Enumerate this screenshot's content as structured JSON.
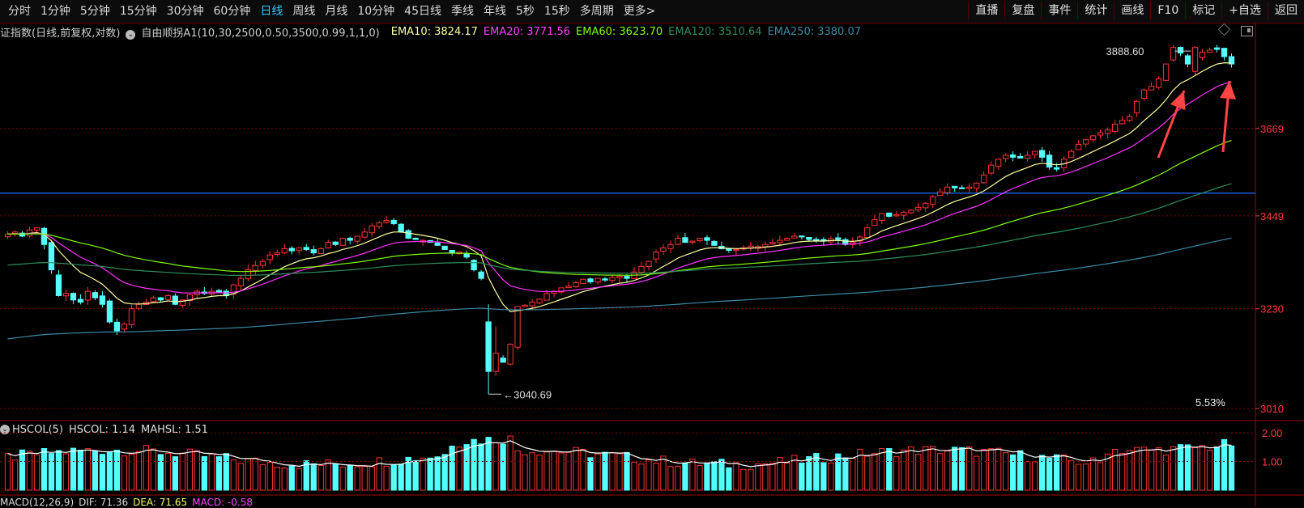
{
  "toolbar": {
    "periods": [
      "分时",
      "1分钟",
      "5分钟",
      "15分钟",
      "30分钟",
      "60分钟",
      "日线",
      "周线",
      "月线",
      "10分钟",
      "45日线",
      "季线",
      "年线",
      "5秒",
      "15秒",
      "多周期",
      "更多>"
    ],
    "active": "日线",
    "right_buttons": [
      "直播",
      "复盘",
      "事件",
      "统计",
      "画线",
      "F10",
      "标记",
      "+自选",
      "返回"
    ]
  },
  "legend": {
    "title": "证指数(日线,前复权,对数)",
    "indicator": "自由顺拐A1(10,30,2500,0.50,3500,0.99,1,1,0)",
    "ema10": "EMA10: 3824.17",
    "ema20": "EMA20: 3771.56",
    "ema60": "EMA60: 3623.70",
    "ema120": "EMA120: 3510.64",
    "ema250": "EMA250: 3380.07"
  },
  "price_axis": [
    "3669",
    "3449",
    "3230",
    "3010"
  ],
  "annotations": {
    "high": "3888.60",
    "low": "3040.69",
    "pct": "5.53%"
  },
  "sub_legend": {
    "name": "HSCOL(5)",
    "hscol": "HSCOL: 1.14",
    "mahsl": "MAHSL: 1.51"
  },
  "sub_axis": [
    "2.00",
    "1.00"
  ],
  "macd_legend": {
    "name": "MACD(12,26,9)",
    "dif": "DIF: 71.36",
    "dea": "DEA: 71.65",
    "macd": "MACD: -0.58"
  },
  "colors": {
    "up": "#ff3333",
    "down": "#54ffff",
    "ema10": "#ffffa0",
    "ema20": "#ff33ff",
    "ema60": "#80ff00",
    "ema120": "#2d8f5a",
    "ema250": "#3b8aa5",
    "hline": "#1f6fff",
    "arrow": "#ff4444",
    "grid": "#7a0000"
  },
  "chart_data": {
    "type": "candlestick",
    "ylim": [
      3010,
      3900
    ],
    "log_scale": true,
    "high": 3888.6,
    "low": 3040.69,
    "horizontal_line": 3505,
    "closes": [
      3405,
      3410,
      3400,
      3415,
      3420,
      3380,
      3320,
      3260,
      3265,
      3250,
      3245,
      3270,
      3255,
      3240,
      3200,
      3180,
      3195,
      3230,
      3240,
      3245,
      3255,
      3250,
      3260,
      3240,
      3250,
      3262,
      3270,
      3265,
      3270,
      3268,
      3260,
      3285,
      3300,
      3320,
      3330,
      3340,
      3355,
      3360,
      3370,
      3365,
      3372,
      3368,
      3360,
      3370,
      3385,
      3380,
      3395,
      3390,
      3400,
      3410,
      3425,
      3432,
      3438,
      3430,
      3410,
      3395,
      3392,
      3390,
      3385,
      3378,
      3368,
      3360,
      3362,
      3350,
      3320,
      3300,
      3070,
      3120,
      3110,
      3150,
      3235,
      3238,
      3245,
      3252,
      3265,
      3270,
      3278,
      3282,
      3290,
      3298,
      3292,
      3300,
      3296,
      3302,
      3305,
      3300,
      3315,
      3328,
      3340,
      3362,
      3372,
      3380,
      3395,
      3385,
      3388,
      3395,
      3390,
      3378,
      3370,
      3366,
      3368,
      3372,
      3376,
      3375,
      3380,
      3385,
      3390,
      3395,
      3400,
      3398,
      3392,
      3390,
      3388,
      3394,
      3392,
      3380,
      3385,
      3398,
      3420,
      3440,
      3455,
      3448,
      3452,
      3458,
      3463,
      3470,
      3480,
      3496,
      3508,
      3520,
      3518,
      3516,
      3520,
      3530,
      3550,
      3575,
      3590,
      3600,
      3595,
      3593,
      3600,
      3610,
      3595,
      3570,
      3565,
      3590,
      3610,
      3628,
      3640,
      3650,
      3658,
      3665,
      3680,
      3690,
      3700,
      3740,
      3770,
      3780,
      3800,
      3840,
      3885,
      3870,
      3840,
      3860,
      3872,
      3878,
      3880,
      3860,
      3840
    ]
  }
}
